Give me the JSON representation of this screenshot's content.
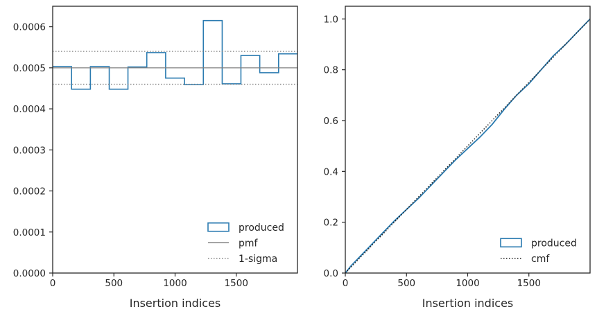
{
  "chart_data": [
    {
      "type": "line",
      "xlabel": "Insertion indices",
      "ylabel": "",
      "xlim": [
        0,
        2000
      ],
      "ylim": [
        0,
        0.00065
      ],
      "xticks": [
        0,
        500,
        1000,
        1500
      ],
      "xtick_labels": [
        "0",
        "500",
        "1000",
        "1500"
      ],
      "yticks": [
        0,
        0.0001,
        0.0002,
        0.0003,
        0.0004,
        0.0005,
        0.0006
      ],
      "ytick_labels": [
        "0.0000",
        "0.0001",
        "0.0002",
        "0.0003",
        "0.0004",
        "0.0005",
        "0.0006"
      ],
      "grid": false,
      "legend_position": "lower-right",
      "series": [
        {
          "name": "produced",
          "style": "step-histogram",
          "color": "#2b7bb0",
          "bin_edges": [
            0,
            154,
            308,
            462,
            615,
            769,
            923,
            1077,
            1231,
            1385,
            1538,
            1692,
            1846,
            2000
          ],
          "values": [
            0.000503,
            0.000448,
            0.000503,
            0.000448,
            0.000502,
            0.000537,
            0.000475,
            0.000459,
            0.000615,
            0.000461,
            0.00053,
            0.000488,
            0.000534
          ]
        },
        {
          "name": "pmf",
          "style": "solid",
          "color": "#808080",
          "y": 0.0005
        },
        {
          "name": "1-sigma",
          "style": "dotted",
          "color": "#808080",
          "y": [
            0.00046,
            0.00054
          ]
        }
      ]
    },
    {
      "type": "line",
      "xlabel": "Insertion indices",
      "ylabel": "",
      "xlim": [
        0,
        2000
      ],
      "ylim": [
        0,
        1.05
      ],
      "xticks": [
        0,
        500,
        1000,
        1500
      ],
      "xtick_labels": [
        "0",
        "500",
        "1000",
        "1500"
      ],
      "yticks": [
        0,
        0.2,
        0.4,
        0.6,
        0.8,
        1.0
      ],
      "ytick_labels": [
        "0.0",
        "0.2",
        "0.4",
        "0.6",
        "0.8",
        "1.0"
      ],
      "grid": false,
      "legend_position": "lower-right",
      "series": [
        {
          "name": "produced",
          "style": "step-cumulative",
          "color": "#2b7bb0",
          "x": [
            0,
            50,
            100,
            200,
            300,
            400,
            500,
            600,
            700,
            800,
            900,
            1000,
            1100,
            1200,
            1300,
            1400,
            1500,
            1600,
            1700,
            1800,
            1900,
            2000
          ],
          "y": [
            0,
            0.03,
            0.055,
            0.105,
            0.155,
            0.205,
            0.25,
            0.295,
            0.345,
            0.395,
            0.445,
            0.49,
            0.535,
            0.585,
            0.645,
            0.7,
            0.745,
            0.8,
            0.855,
            0.9,
            0.95,
            1.0
          ]
        },
        {
          "name": "cmf",
          "style": "dotted",
          "color": "#1a1a1a",
          "x": [
            0,
            2000
          ],
          "y": [
            0,
            1
          ]
        }
      ]
    }
  ]
}
